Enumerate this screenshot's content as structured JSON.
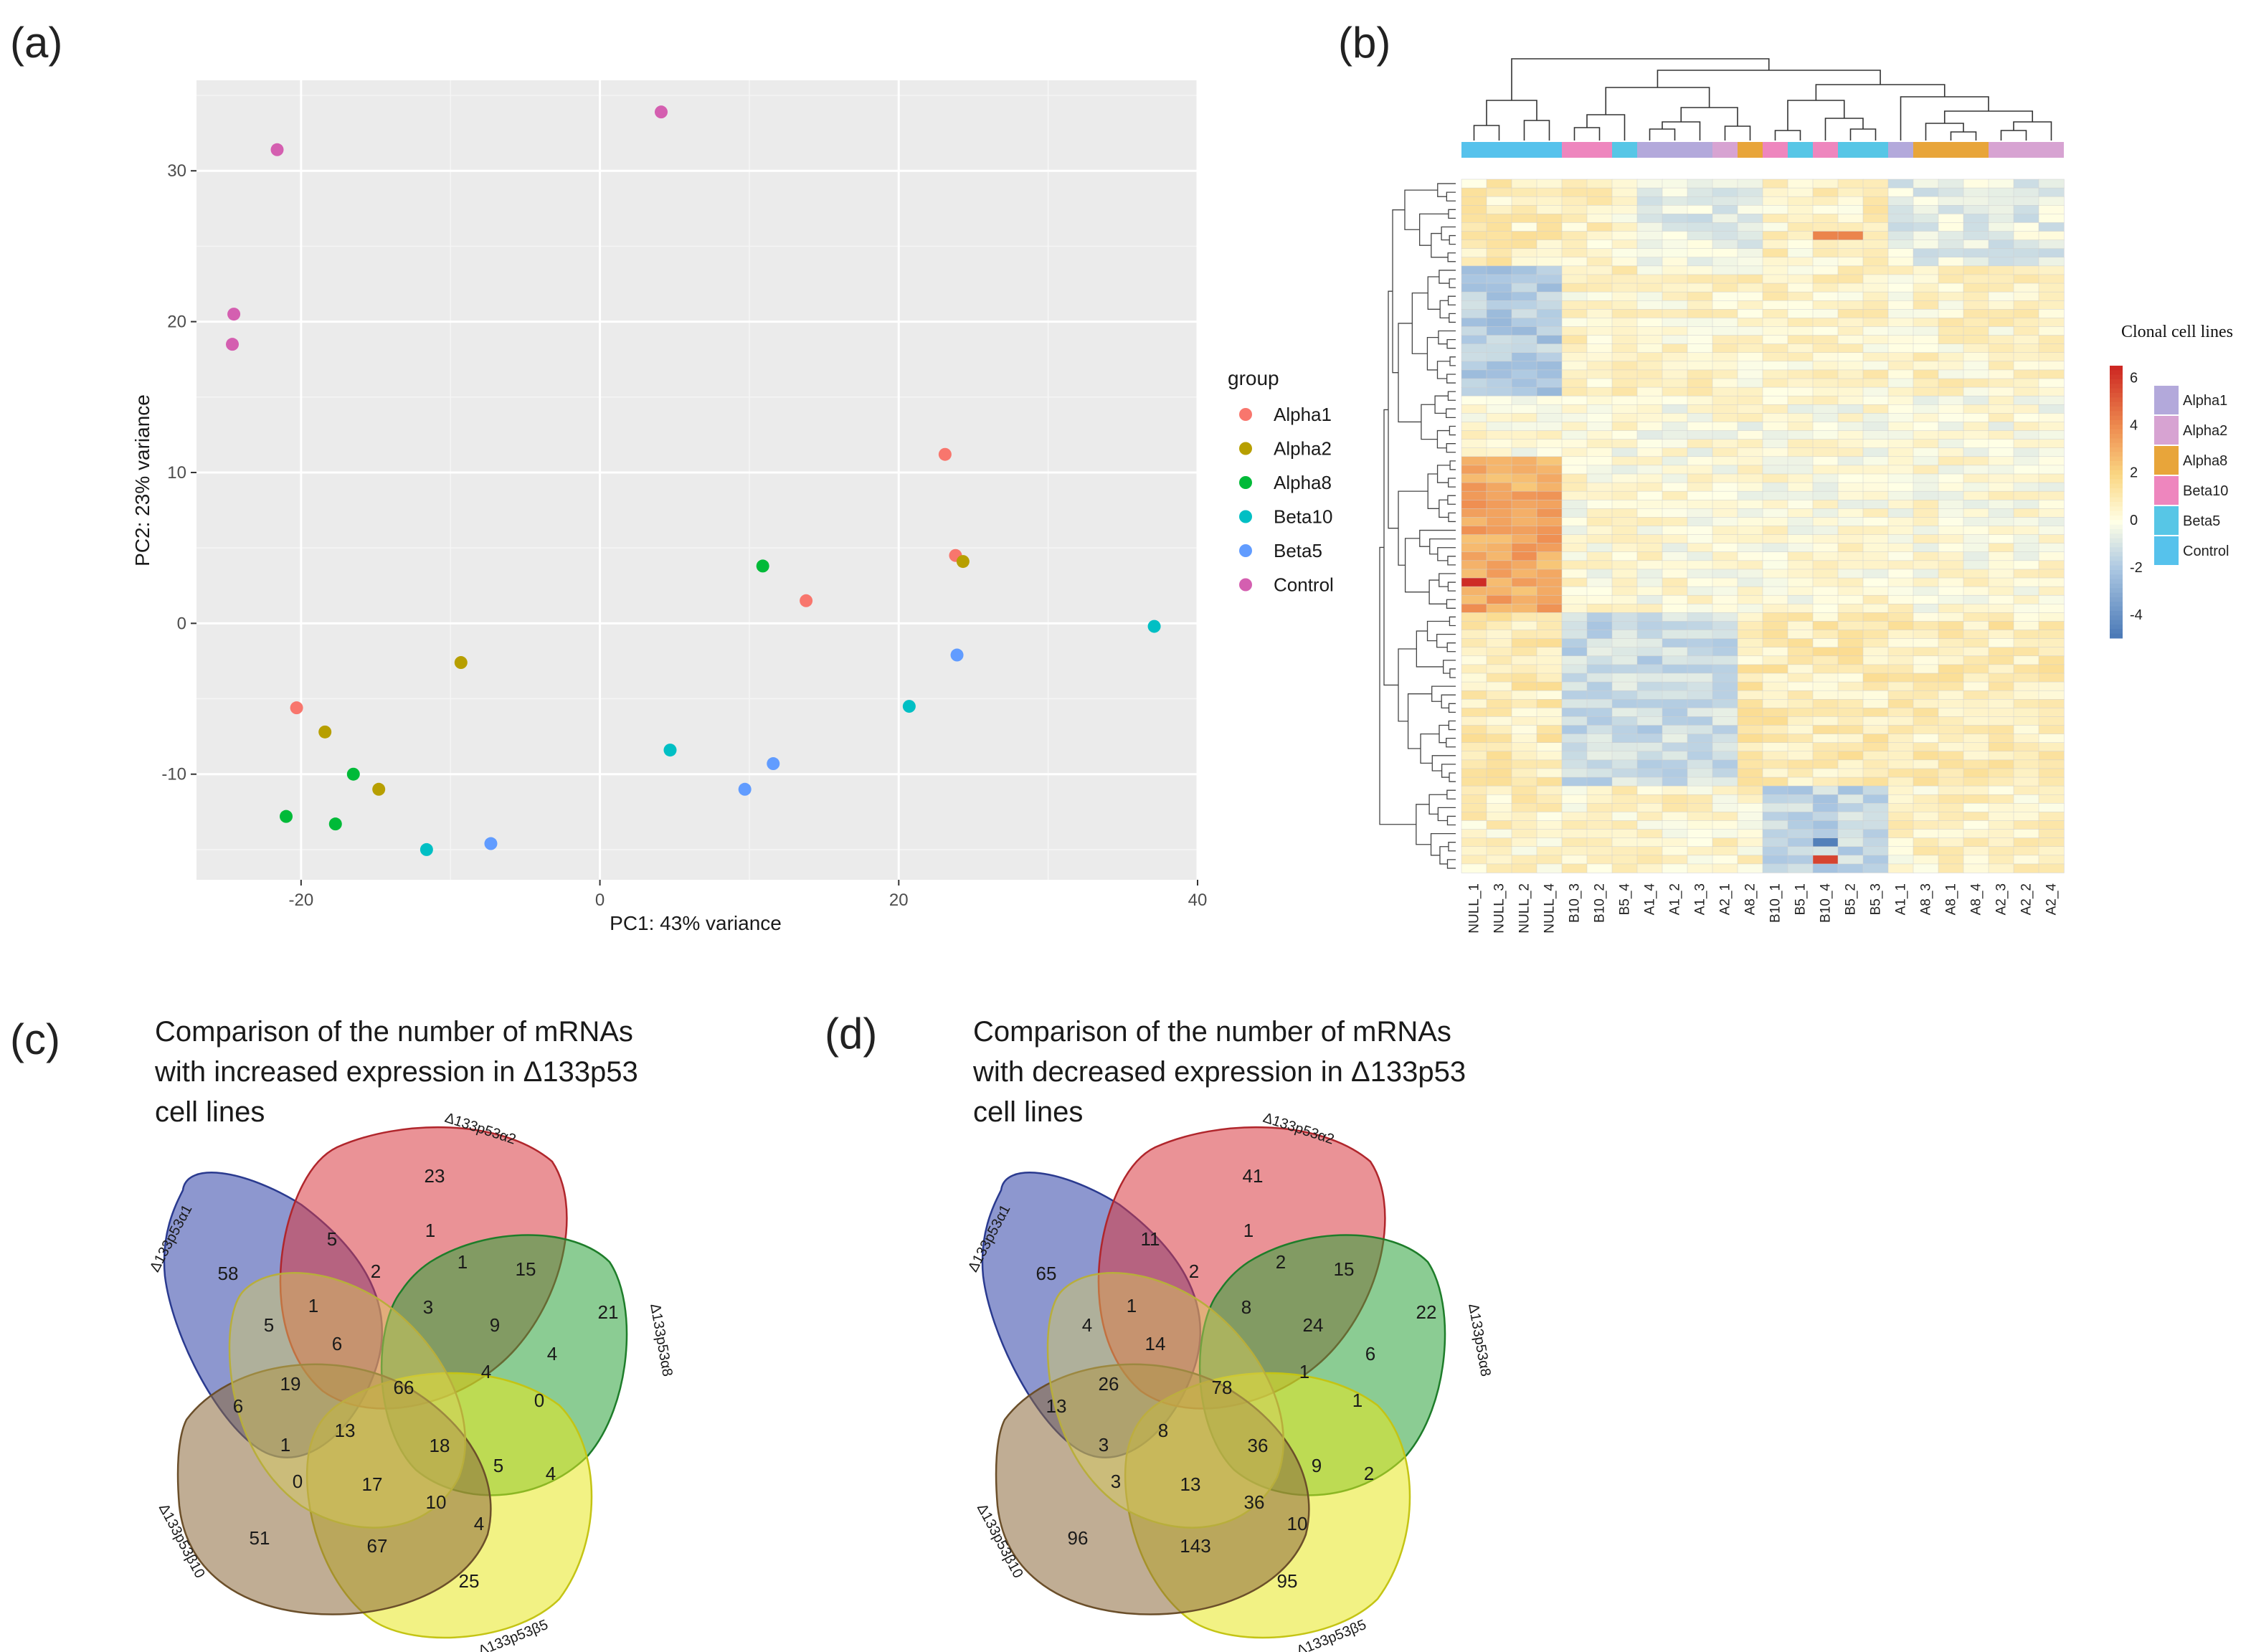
{
  "panels": {
    "a": "(a)",
    "b": "(b)",
    "c": "(c)",
    "d": "(d)"
  },
  "chart_data": [
    {
      "type": "scatter",
      "panel": "(a)",
      "xlabel": "PC1: 43% variance",
      "ylabel": "PC2: 23% variance",
      "xlim": [
        -27,
        40
      ],
      "ylim": [
        -17,
        36
      ],
      "xticks": [
        -20,
        0,
        20,
        40
      ],
      "yticks": [
        -10,
        0,
        10,
        20,
        30
      ],
      "legend_title": "group",
      "series": [
        {
          "name": "Alpha1",
          "color": "#F8766D",
          "points": [
            [
              -20.3,
              -5.6
            ],
            [
              23.1,
              11.2
            ],
            [
              23.8,
              4.5
            ],
            [
              13.8,
              1.5
            ]
          ]
        },
        {
          "name": "Alpha2",
          "color": "#B79F00",
          "points": [
            [
              -9.3,
              -2.6
            ],
            [
              -18.4,
              -7.2
            ],
            [
              -14.8,
              -11.0
            ],
            [
              24.3,
              4.1
            ]
          ]
        },
        {
          "name": "Alpha8",
          "color": "#00BA38",
          "points": [
            [
              10.9,
              3.8
            ],
            [
              -16.5,
              -10.0
            ],
            [
              -21.0,
              -12.8
            ],
            [
              -17.7,
              -13.3
            ]
          ]
        },
        {
          "name": "Beta10",
          "color": "#00BFC4",
          "points": [
            [
              37.1,
              -0.2
            ],
            [
              20.7,
              -5.5
            ],
            [
              4.7,
              -8.4
            ],
            [
              -11.6,
              -15.0
            ]
          ]
        },
        {
          "name": "Beta5",
          "color": "#619CFF",
          "points": [
            [
              23.9,
              -2.1
            ],
            [
              11.6,
              -9.3
            ],
            [
              9.7,
              -11.0
            ],
            [
              -7.3,
              -14.6
            ]
          ]
        },
        {
          "name": "Control",
          "color": "#D45FB0",
          "points": [
            [
              4.1,
              33.9
            ],
            [
              -21.6,
              31.4
            ],
            [
              -24.5,
              20.5
            ],
            [
              -24.6,
              18.5
            ]
          ]
        }
      ]
    },
    {
      "type": "heatmap",
      "panel": "(b)",
      "columns": [
        "NULL_1",
        "NULL_3",
        "NULL_2",
        "NULL_4",
        "B10_3",
        "B10_2",
        "B5_4",
        "A1_4",
        "A1_2",
        "A1_3",
        "A2_1",
        "A8_2",
        "B10_1",
        "B5_1",
        "B10_4",
        "B5_2",
        "B5_3",
        "A1_1",
        "A8_3",
        "A8_1",
        "A8_4",
        "A2_3",
        "A2_2",
        "A2_4"
      ],
      "column_groups": [
        "Control",
        "Control",
        "Control",
        "Control",
        "Beta10",
        "Beta10",
        "Beta5",
        "Alpha1",
        "Alpha1",
        "Alpha1",
        "Alpha2",
        "Alpha8",
        "Beta10",
        "Beta5",
        "Beta10",
        "Beta5",
        "Beta5",
        "Alpha1",
        "Alpha8",
        "Alpha8",
        "Alpha8",
        "Alpha2",
        "Alpha2",
        "Alpha2"
      ],
      "annotation_title": "Clonal cell lines",
      "annotation_levels": [
        "Alpha1",
        "Alpha2",
        "Alpha8",
        "Beta10",
        "Beta5",
        "Control"
      ],
      "annotation_colors": {
        "Alpha1": "#B3A9DB",
        "Alpha2": "#D7A3D2",
        "Alpha8": "#E8A53A",
        "Beta10": "#EE86BE",
        "Beta5": "#57C6E6",
        "Control": "#56C2EC"
      },
      "color_scale_ticks": [
        "6",
        "4",
        "2",
        "0",
        "-2",
        "-4"
      ],
      "color_range": [
        -5,
        6.5
      ]
    },
    {
      "type": "venn",
      "panel": "(c)",
      "title_lines": [
        "Comparison of the number of mRNAs",
        "with increased expression in Δ133p53",
        "cell lines"
      ],
      "sets": [
        "Δ133p53α1",
        "Δ133p53α2",
        "Δ133p53α8",
        "Δ133p53β5",
        "Δ133p53β10"
      ],
      "counts": [
        "58",
        "23",
        "21",
        "25",
        "51",
        "5",
        "1",
        "2",
        "1",
        "15",
        "5",
        "1",
        "6",
        "3",
        "9",
        "4",
        "0",
        "19",
        "66",
        "4",
        "6",
        "13",
        "1",
        "18",
        "5",
        "4",
        "0",
        "17",
        "10",
        "4",
        "67"
      ]
    },
    {
      "type": "venn",
      "panel": "(d)",
      "title_lines": [
        "Comparison of the number of mRNAs",
        "with decreased expression in Δ133p53",
        "cell lines"
      ],
      "sets": [
        "Δ133p53α1",
        "Δ133p53α2",
        "Δ133p53α8",
        "Δ133p53β5",
        "Δ133p53β10"
      ],
      "counts": [
        "65",
        "41",
        "22",
        "95",
        "96",
        "11",
        "1",
        "2",
        "2",
        "15",
        "4",
        "1",
        "14",
        "8",
        "24",
        "6",
        "1",
        "26",
        "78",
        "1",
        "13",
        "8",
        "3",
        "36",
        "9",
        "2",
        "3",
        "13",
        "36",
        "10",
        "143"
      ]
    }
  ]
}
